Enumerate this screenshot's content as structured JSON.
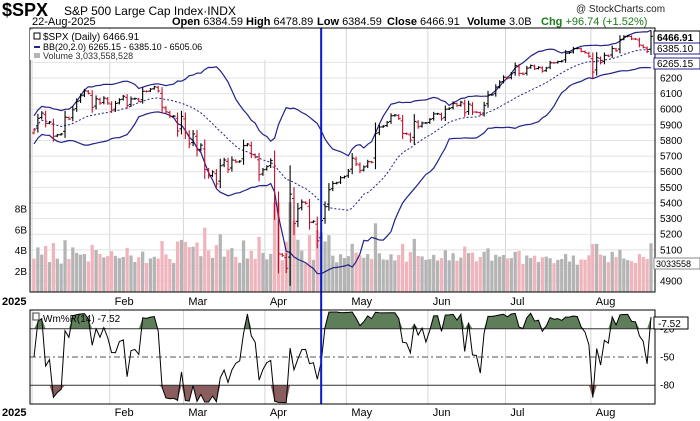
{
  "header": {
    "ticker": "$SPX",
    "description": "S&P 500 Large Cap Index",
    "exchange": "INDX",
    "credit": "@ StockCharts.com",
    "date": "22-Aug-2025",
    "open_label": "Open",
    "open": "6384.59",
    "high_label": "High",
    "high": "6478.89",
    "low_label": "Low",
    "low": "6384.59",
    "close_label": "Close",
    "close": "6466.91",
    "volume_label": "Volume",
    "volume": "3.0B",
    "chg_label": "Chg",
    "chg": "+96.74 (+1.52%)"
  },
  "legend": {
    "price": "$SPX (Daily) 6466.91",
    "bb": "BB(20,2.0) 6265.15 - 6385.10 - 6505.06",
    "volume": "Volume 3,033,558,528",
    "wpr": "Wm%R(14) -7.52"
  },
  "badges": {
    "last": "6466.91",
    "bb_mid": "6385.10",
    "bb_low": "6265.15",
    "volume": "3033558",
    "wpr": "-7.52"
  },
  "colors": {
    "bb": "#22228a",
    "up": "#000000",
    "down": "#c0102a",
    "vol_up": "#b4b4b4",
    "vol_down": "#f0b4bc",
    "wpr_overbought": "#5e7e5a",
    "wpr_oversold": "#8a5e5e",
    "cursor": "#0a1ad0"
  },
  "chart_data": {
    "type": "candlestick",
    "title": "$SPX S&P 500 Large Cap Index",
    "x_axis": [
      "2025",
      "Feb",
      "Mar",
      "Apr",
      "May",
      "Jun",
      "Jul",
      "Aug"
    ],
    "price_axis": {
      "ticks": [
        4900,
        5000,
        5100,
        5200,
        5300,
        5400,
        5500,
        5600,
        5700,
        5800,
        5900,
        6000,
        6100,
        6200,
        6300
      ],
      "range": [
        4830,
        6520
      ]
    },
    "volume_axis": {
      "ticks": [
        "2B",
        "4B",
        "6B",
        "8B"
      ],
      "range": [
        0,
        9
      ]
    },
    "wpr_axis": {
      "ticks": [
        -20,
        -50,
        -80
      ],
      "range": [
        -100,
        0
      ]
    },
    "cursor_date": "2025-04-22",
    "price_series": [
      {
        "d": "2025-01-02",
        "c": 5868,
        "dir": "down"
      },
      {
        "d": "2025-01-03",
        "c": 5942,
        "dir": "up"
      },
      {
        "d": "2025-01-06",
        "c": 5975,
        "dir": "up"
      },
      {
        "d": "2025-01-07",
        "c": 5909,
        "dir": "down"
      },
      {
        "d": "2025-01-08",
        "c": 5918,
        "dir": "up"
      },
      {
        "d": "2025-01-10",
        "c": 5827,
        "dir": "down"
      },
      {
        "d": "2025-01-13",
        "c": 5836,
        "dir": "up"
      },
      {
        "d": "2025-01-14",
        "c": 5842,
        "dir": "up"
      },
      {
        "d": "2025-01-15",
        "c": 5949,
        "dir": "up"
      },
      {
        "d": "2025-01-16",
        "c": 5937,
        "dir": "down"
      },
      {
        "d": "2025-01-17",
        "c": 5996,
        "dir": "up"
      },
      {
        "d": "2025-01-21",
        "c": 6049,
        "dir": "up"
      },
      {
        "d": "2025-01-22",
        "c": 6086,
        "dir": "up"
      },
      {
        "d": "2025-01-23",
        "c": 6118,
        "dir": "up"
      },
      {
        "d": "2025-01-24",
        "c": 6101,
        "dir": "down"
      },
      {
        "d": "2025-01-27",
        "c": 6012,
        "dir": "down"
      },
      {
        "d": "2025-01-28",
        "c": 6067,
        "dir": "up"
      },
      {
        "d": "2025-01-29",
        "c": 6039,
        "dir": "down"
      },
      {
        "d": "2025-01-30",
        "c": 6071,
        "dir": "up"
      },
      {
        "d": "2025-01-31",
        "c": 6040,
        "dir": "down"
      },
      {
        "d": "2025-02-03",
        "c": 5994,
        "dir": "down"
      },
      {
        "d": "2025-02-04",
        "c": 6037,
        "dir": "up"
      },
      {
        "d": "2025-02-05",
        "c": 6061,
        "dir": "up"
      },
      {
        "d": "2025-02-06",
        "c": 6083,
        "dir": "up"
      },
      {
        "d": "2025-02-07",
        "c": 6025,
        "dir": "down"
      },
      {
        "d": "2025-02-10",
        "c": 6066,
        "dir": "up"
      },
      {
        "d": "2025-02-11",
        "c": 6068,
        "dir": "up"
      },
      {
        "d": "2025-02-12",
        "c": 6051,
        "dir": "down"
      },
      {
        "d": "2025-02-13",
        "c": 6115,
        "dir": "up"
      },
      {
        "d": "2025-02-14",
        "c": 6114,
        "dir": "down"
      },
      {
        "d": "2025-02-18",
        "c": 6129,
        "dir": "up"
      },
      {
        "d": "2025-02-19",
        "c": 6144,
        "dir": "up"
      },
      {
        "d": "2025-02-20",
        "c": 6117,
        "dir": "down"
      },
      {
        "d": "2025-02-21",
        "c": 6013,
        "dir": "down"
      },
      {
        "d": "2025-02-24",
        "c": 5983,
        "dir": "down"
      },
      {
        "d": "2025-02-25",
        "c": 5955,
        "dir": "down"
      },
      {
        "d": "2025-02-26",
        "c": 5956,
        "dir": "up"
      },
      {
        "d": "2025-02-27",
        "c": 5861,
        "dir": "down"
      },
      {
        "d": "2025-02-28",
        "c": 5954,
        "dir": "up"
      },
      {
        "d": "2025-03-03",
        "c": 5849,
        "dir": "down"
      },
      {
        "d": "2025-03-04",
        "c": 5778,
        "dir": "down"
      },
      {
        "d": "2025-03-05",
        "c": 5842,
        "dir": "up"
      },
      {
        "d": "2025-03-06",
        "c": 5738,
        "dir": "down"
      },
      {
        "d": "2025-03-07",
        "c": 5770,
        "dir": "up"
      },
      {
        "d": "2025-03-10",
        "c": 5614,
        "dir": "down"
      },
      {
        "d": "2025-03-11",
        "c": 5572,
        "dir": "down"
      },
      {
        "d": "2025-03-12",
        "c": 5599,
        "dir": "up"
      },
      {
        "d": "2025-03-13",
        "c": 5522,
        "dir": "down"
      },
      {
        "d": "2025-03-14",
        "c": 5638,
        "dir": "up"
      },
      {
        "d": "2025-03-17",
        "c": 5675,
        "dir": "up"
      },
      {
        "d": "2025-03-18",
        "c": 5615,
        "dir": "down"
      },
      {
        "d": "2025-03-19",
        "c": 5675,
        "dir": "up"
      },
      {
        "d": "2025-03-20",
        "c": 5662,
        "dir": "down"
      },
      {
        "d": "2025-03-21",
        "c": 5668,
        "dir": "up"
      },
      {
        "d": "2025-03-24",
        "c": 5767,
        "dir": "up"
      },
      {
        "d": "2025-03-25",
        "c": 5777,
        "dir": "up"
      },
      {
        "d": "2025-03-26",
        "c": 5712,
        "dir": "down"
      },
      {
        "d": "2025-03-27",
        "c": 5693,
        "dir": "down"
      },
      {
        "d": "2025-03-28",
        "c": 5581,
        "dir": "down"
      },
      {
        "d": "2025-03-31",
        "c": 5612,
        "dir": "up"
      },
      {
        "d": "2025-04-01",
        "c": 5633,
        "dir": "up"
      },
      {
        "d": "2025-04-02",
        "c": 5671,
        "dir": "up"
      },
      {
        "d": "2025-04-03",
        "c": 5397,
        "dir": "down"
      },
      {
        "d": "2025-04-04",
        "c": 5074,
        "dir": "down"
      },
      {
        "d": "2025-04-07",
        "c": 5062,
        "dir": "down"
      },
      {
        "d": "2025-04-08",
        "c": 4982,
        "dir": "down"
      },
      {
        "d": "2025-04-09",
        "c": 5457,
        "dir": "up"
      },
      {
        "d": "2025-04-10",
        "c": 5268,
        "dir": "down"
      },
      {
        "d": "2025-04-11",
        "c": 5363,
        "dir": "up"
      },
      {
        "d": "2025-04-14",
        "c": 5406,
        "dir": "up"
      },
      {
        "d": "2025-04-15",
        "c": 5397,
        "dir": "down"
      },
      {
        "d": "2025-04-16",
        "c": 5276,
        "dir": "down"
      },
      {
        "d": "2025-04-17",
        "c": 5283,
        "dir": "up"
      },
      {
        "d": "2025-04-21",
        "c": 5158,
        "dir": "down"
      },
      {
        "d": "2025-04-22",
        "c": 5288,
        "dir": "up"
      },
      {
        "d": "2025-04-23",
        "c": 5376,
        "dir": "up"
      },
      {
        "d": "2025-04-24",
        "c": 5485,
        "dir": "up"
      },
      {
        "d": "2025-04-25",
        "c": 5525,
        "dir": "up"
      },
      {
        "d": "2025-04-28",
        "c": 5529,
        "dir": "up"
      },
      {
        "d": "2025-04-29",
        "c": 5561,
        "dir": "up"
      },
      {
        "d": "2025-04-30",
        "c": 5569,
        "dir": "up"
      },
      {
        "d": "2025-05-01",
        "c": 5604,
        "dir": "up"
      },
      {
        "d": "2025-05-02",
        "c": 5687,
        "dir": "up"
      },
      {
        "d": "2025-05-05",
        "c": 5650,
        "dir": "down"
      },
      {
        "d": "2025-05-06",
        "c": 5607,
        "dir": "down"
      },
      {
        "d": "2025-05-07",
        "c": 5631,
        "dir": "up"
      },
      {
        "d": "2025-05-08",
        "c": 5664,
        "dir": "up"
      },
      {
        "d": "2025-05-09",
        "c": 5660,
        "dir": "down"
      },
      {
        "d": "2025-05-12",
        "c": 5844,
        "dir": "up"
      },
      {
        "d": "2025-05-13",
        "c": 5886,
        "dir": "up"
      },
      {
        "d": "2025-05-14",
        "c": 5892,
        "dir": "up"
      },
      {
        "d": "2025-05-15",
        "c": 5916,
        "dir": "up"
      },
      {
        "d": "2025-05-16",
        "c": 5958,
        "dir": "up"
      },
      {
        "d": "2025-05-19",
        "c": 5963,
        "dir": "up"
      },
      {
        "d": "2025-05-20",
        "c": 5940,
        "dir": "down"
      },
      {
        "d": "2025-05-21",
        "c": 5845,
        "dir": "down"
      },
      {
        "d": "2025-05-22",
        "c": 5842,
        "dir": "down"
      },
      {
        "d": "2025-05-23",
        "c": 5802,
        "dir": "down"
      },
      {
        "d": "2025-05-27",
        "c": 5922,
        "dir": "up"
      },
      {
        "d": "2025-05-28",
        "c": 5888,
        "dir": "down"
      },
      {
        "d": "2025-05-29",
        "c": 5912,
        "dir": "up"
      },
      {
        "d": "2025-05-30",
        "c": 5912,
        "dir": "up"
      },
      {
        "d": "2025-06-02",
        "c": 5935,
        "dir": "up"
      },
      {
        "d": "2025-06-03",
        "c": 5970,
        "dir": "up"
      },
      {
        "d": "2025-06-04",
        "c": 5971,
        "dir": "up"
      },
      {
        "d": "2025-06-05",
        "c": 5939,
        "dir": "down"
      },
      {
        "d": "2025-06-06",
        "c": 6000,
        "dir": "up"
      },
      {
        "d": "2025-06-09",
        "c": 6006,
        "dir": "up"
      },
      {
        "d": "2025-06-10",
        "c": 6038,
        "dir": "up"
      },
      {
        "d": "2025-06-11",
        "c": 6022,
        "dir": "down"
      },
      {
        "d": "2025-06-12",
        "c": 6045,
        "dir": "up"
      },
      {
        "d": "2025-06-13",
        "c": 5977,
        "dir": "down"
      },
      {
        "d": "2025-06-16",
        "c": 6033,
        "dir": "up"
      },
      {
        "d": "2025-06-17",
        "c": 5982,
        "dir": "down"
      },
      {
        "d": "2025-06-18",
        "c": 5981,
        "dir": "down"
      },
      {
        "d": "2025-06-20",
        "c": 5967,
        "dir": "down"
      },
      {
        "d": "2025-06-23",
        "c": 6025,
        "dir": "up"
      },
      {
        "d": "2025-06-24",
        "c": 6092,
        "dir": "up"
      },
      {
        "d": "2025-06-25",
        "c": 6092,
        "dir": "up"
      },
      {
        "d": "2025-06-26",
        "c": 6141,
        "dir": "up"
      },
      {
        "d": "2025-06-27",
        "c": 6173,
        "dir": "up"
      },
      {
        "d": "2025-06-30",
        "c": 6205,
        "dir": "up"
      },
      {
        "d": "2025-07-01",
        "c": 6198,
        "dir": "down"
      },
      {
        "d": "2025-07-02",
        "c": 6227,
        "dir": "up"
      },
      {
        "d": "2025-07-03",
        "c": 6279,
        "dir": "up"
      },
      {
        "d": "2025-07-07",
        "c": 6230,
        "dir": "down"
      },
      {
        "d": "2025-07-08",
        "c": 6225,
        "dir": "down"
      },
      {
        "d": "2025-07-09",
        "c": 6263,
        "dir": "up"
      },
      {
        "d": "2025-07-10",
        "c": 6280,
        "dir": "up"
      },
      {
        "d": "2025-07-11",
        "c": 6259,
        "dir": "down"
      },
      {
        "d": "2025-07-14",
        "c": 6269,
        "dir": "up"
      },
      {
        "d": "2025-07-15",
        "c": 6244,
        "dir": "down"
      },
      {
        "d": "2025-07-16",
        "c": 6264,
        "dir": "up"
      },
      {
        "d": "2025-07-17",
        "c": 6297,
        "dir": "up"
      },
      {
        "d": "2025-07-18",
        "c": 6297,
        "dir": "down"
      },
      {
        "d": "2025-07-21",
        "c": 6305,
        "dir": "up"
      },
      {
        "d": "2025-07-22",
        "c": 6309,
        "dir": "up"
      },
      {
        "d": "2025-07-23",
        "c": 6359,
        "dir": "up"
      },
      {
        "d": "2025-07-24",
        "c": 6363,
        "dir": "up"
      },
      {
        "d": "2025-07-25",
        "c": 6389,
        "dir": "up"
      },
      {
        "d": "2025-07-28",
        "c": 6390,
        "dir": "up"
      },
      {
        "d": "2025-07-29",
        "c": 6371,
        "dir": "down"
      },
      {
        "d": "2025-07-30",
        "c": 6362,
        "dir": "down"
      },
      {
        "d": "2025-07-31",
        "c": 6339,
        "dir": "down"
      },
      {
        "d": "2025-08-01",
        "c": 6238,
        "dir": "down"
      },
      {
        "d": "2025-08-04",
        "c": 6330,
        "dir": "up"
      },
      {
        "d": "2025-08-05",
        "c": 6299,
        "dir": "down"
      },
      {
        "d": "2025-08-06",
        "c": 6345,
        "dir": "up"
      },
      {
        "d": "2025-08-07",
        "c": 6340,
        "dir": "down"
      },
      {
        "d": "2025-08-08",
        "c": 6389,
        "dir": "up"
      },
      {
        "d": "2025-08-11",
        "c": 6374,
        "dir": "down"
      },
      {
        "d": "2025-08-12",
        "c": 6446,
        "dir": "up"
      },
      {
        "d": "2025-08-13",
        "c": 6466,
        "dir": "up"
      },
      {
        "d": "2025-08-14",
        "c": 6469,
        "dir": "up"
      },
      {
        "d": "2025-08-15",
        "c": 6450,
        "dir": "down"
      },
      {
        "d": "2025-08-18",
        "c": 6449,
        "dir": "down"
      },
      {
        "d": "2025-08-19",
        "c": 6411,
        "dir": "down"
      },
      {
        "d": "2025-08-20",
        "c": 6396,
        "dir": "down"
      },
      {
        "d": "2025-08-21",
        "c": 6370,
        "dir": "down"
      },
      {
        "d": "2025-08-22",
        "c": 6467,
        "dir": "up"
      }
    ]
  }
}
